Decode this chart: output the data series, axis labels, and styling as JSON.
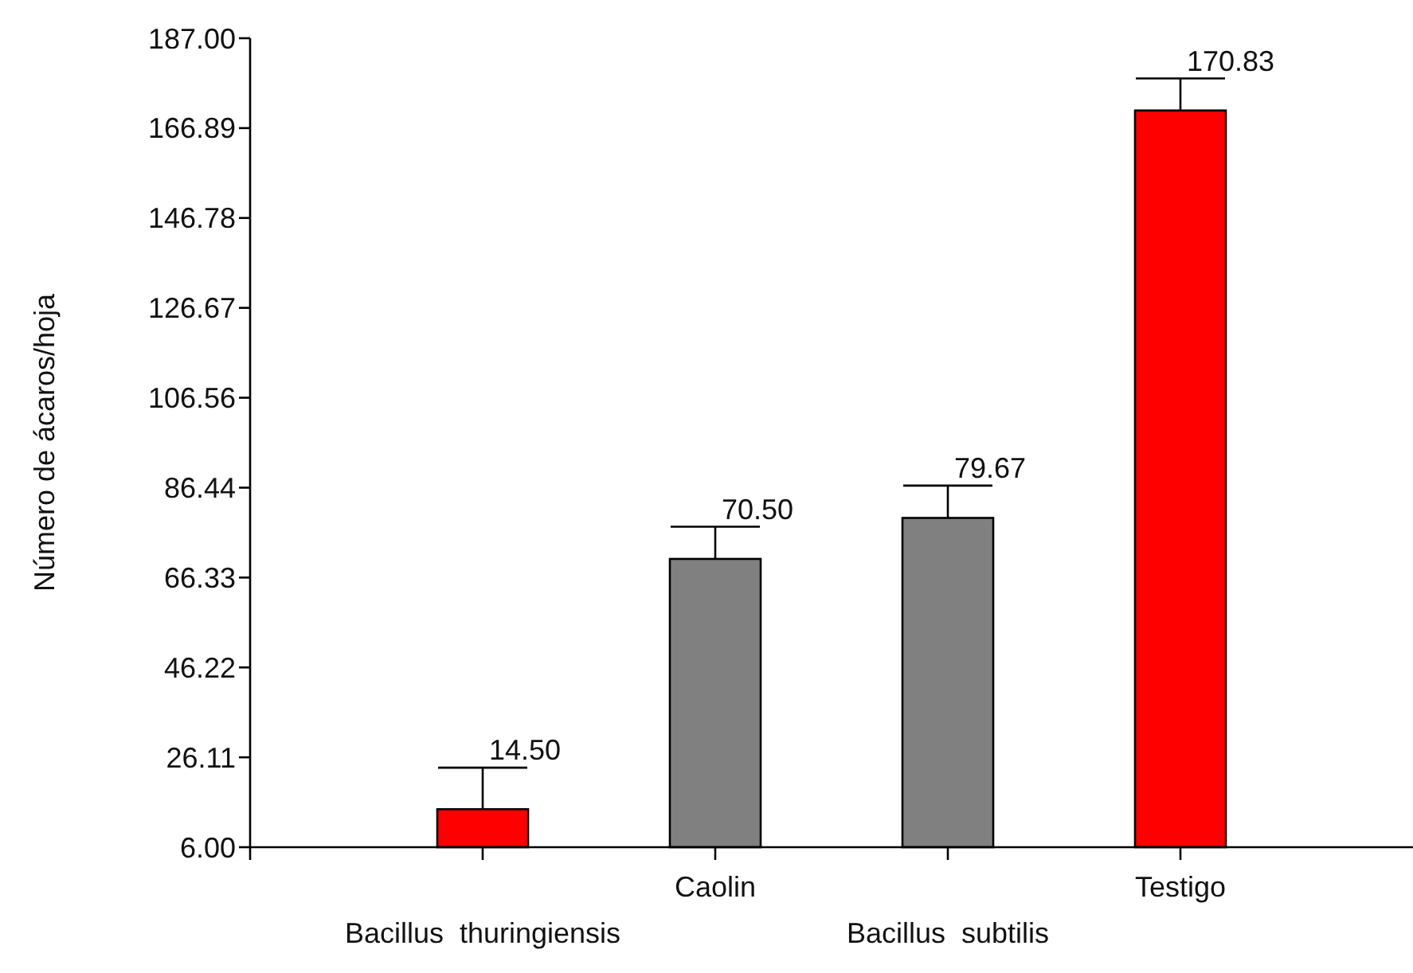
{
  "chart_data": {
    "type": "bar",
    "ylabel": "Número de ácaros/hoja",
    "categories": [
      "Bacillus  thuringiensis",
      "Caolin",
      "Bacillus  subtilis",
      "Testigo"
    ],
    "values": [
      14.5,
      70.5,
      79.67,
      170.83
    ],
    "colors": [
      "#ff0000",
      "#808080",
      "#808080",
      "#ff0000"
    ],
    "errors": [
      [
        14.5,
        23.8
      ],
      [
        70.5,
        77.7
      ],
      [
        79.67,
        86.9
      ],
      [
        170.83,
        178.0
      ]
    ],
    "value_labels": [
      "14.50",
      "70.50",
      "79.67",
      "170.83"
    ],
    "ylim": [
      6,
      187
    ],
    "yticks": [
      {
        "value": 6,
        "label": "6.00"
      },
      {
        "value": 26.11,
        "label": "26.11"
      },
      {
        "value": 46.22,
        "label": "46.22"
      },
      {
        "value": 66.33,
        "label": "66.33"
      },
      {
        "value": 86.44,
        "label": "86.44"
      },
      {
        "value": 106.56,
        "label": "106.56"
      },
      {
        "value": 126.67,
        "label": "126.67"
      },
      {
        "value": 146.78,
        "label": "146.78"
      },
      {
        "value": 166.89,
        "label": "166.89"
      },
      {
        "value": 187,
        "label": "187.00"
      }
    ],
    "grid": false
  }
}
